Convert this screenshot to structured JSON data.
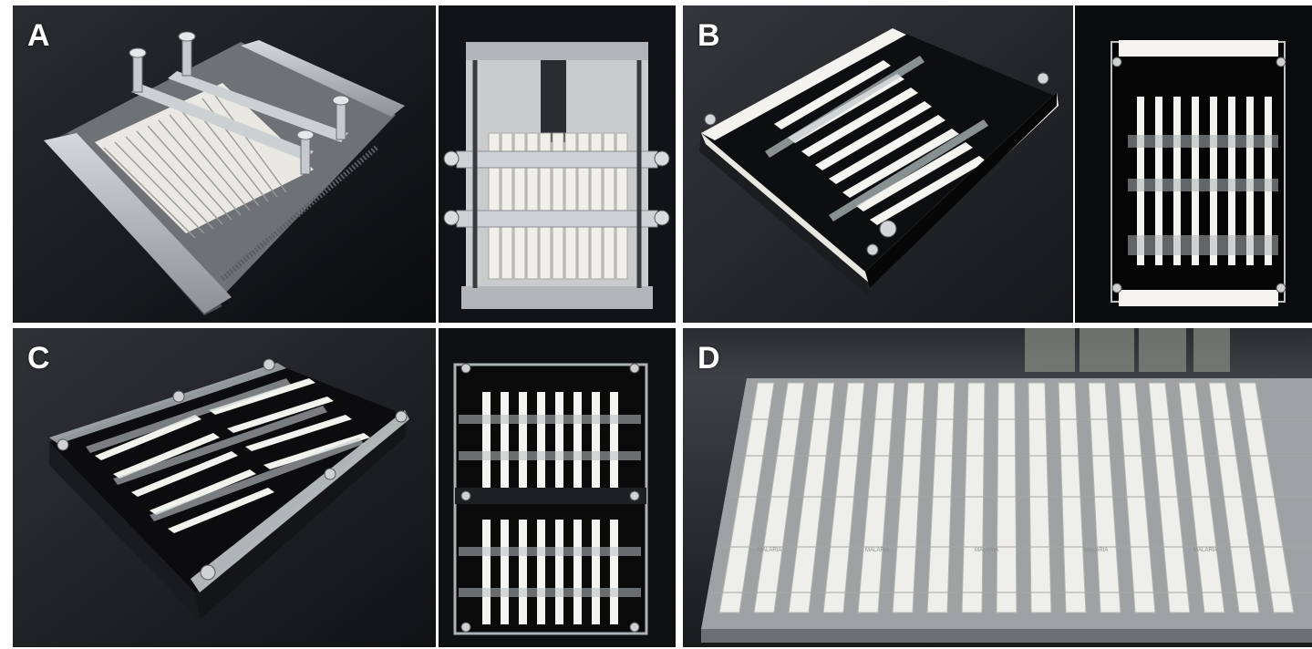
{
  "figure": {
    "panels": [
      {
        "label": "A",
        "description_photos": 2
      },
      {
        "label": "B",
        "description_photos": 2
      },
      {
        "label": "C",
        "description_photos": 2
      },
      {
        "label": "D",
        "description_photos": 1
      }
    ],
    "strip_text": "MALARIA"
  },
  "colors": {
    "background": "#0c0d10",
    "metal": "#b9bcc0",
    "strip_white": "#eeeeea",
    "acrylic": "#cfd6d8",
    "black_plastic": "#111214"
  }
}
